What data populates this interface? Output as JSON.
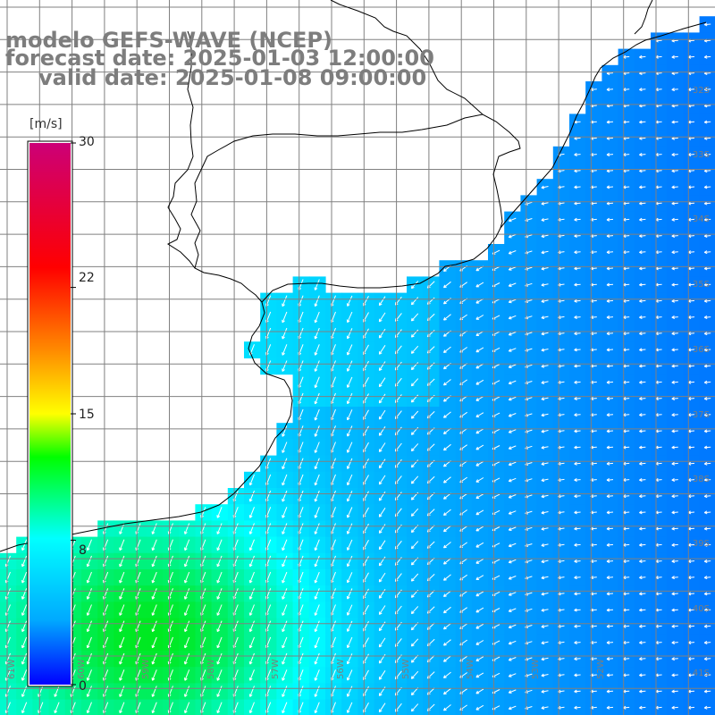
{
  "title": {
    "line1": "modelo GEFS-WAVE (NCEP)",
    "line2": "forecast date: 2025-01-03 12:00:00",
    "line3": "valid date: 2025-01-08 09:00:00"
  },
  "colorbar": {
    "unit": "[m/s]",
    "ticks": [
      {
        "value": 30,
        "label": "30"
      },
      {
        "value": 22,
        "label": "22"
      },
      {
        "value": 15,
        "label": "15"
      },
      {
        "value": 8,
        "label": "8"
      },
      {
        "value": 0,
        "label": "0"
      }
    ],
    "colors": [
      "#0000ff",
      "#00aaff",
      "#00ffff",
      "#00ff00",
      "#ffff00",
      "#ff8800",
      "#ff0000",
      "#cc0077"
    ]
  },
  "axes": {
    "lat_labels": [
      "32S",
      "33S",
      "34S",
      "35S",
      "36S",
      "37S",
      "38S",
      "39S",
      "40S",
      "41S"
    ],
    "lon_labels": [
      "61W",
      "60W",
      "59W",
      "58W",
      "57W",
      "56W",
      "55W",
      "54W",
      "53W",
      "52W"
    ]
  },
  "colors": {
    "land": "#ffffff",
    "grid": "#808080",
    "coast": "#000000",
    "arrow": "#ffffff",
    "label": "#7d7d7d"
  }
}
